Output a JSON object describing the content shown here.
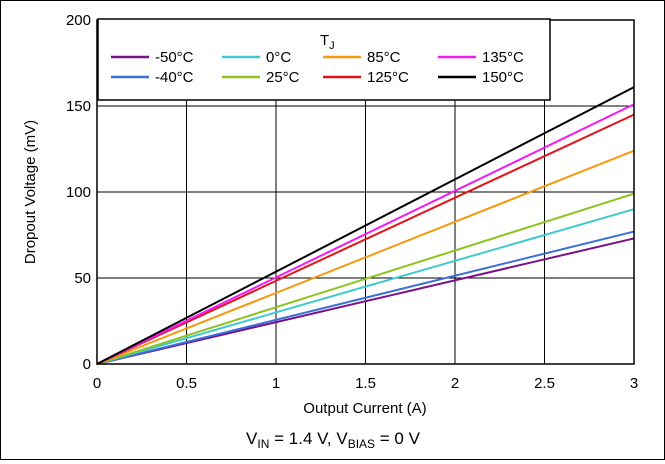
{
  "chart_data": {
    "type": "line",
    "xlabel": "Output Current (A)",
    "ylabel": "Dropout Voltage (mV)",
    "xlim": [
      0,
      3
    ],
    "ylim": [
      0,
      200
    ],
    "x_ticks": [
      "0",
      "0.5",
      "1",
      "1.5",
      "2",
      "2.5",
      "3"
    ],
    "y_ticks": [
      "0",
      "50",
      "100",
      "150",
      "200"
    ],
    "grid": true,
    "legend_title_main": "T",
    "legend_title_sub": "J",
    "legend_position": "top",
    "footnote": {
      "vin_prefix": "V",
      "vin_sub": "IN",
      "vin_value": " = 1.4 V, V",
      "vbias_sub": "BIAS",
      "vbias_value": " = 0 V"
    },
    "x": [
      0,
      3
    ],
    "series": [
      {
        "name": "-50°C",
        "color": "#7b0f8a",
        "values": [
          0,
          73
        ]
      },
      {
        "name": "-40°C",
        "color": "#3a6fd8",
        "values": [
          0,
          77
        ]
      },
      {
        "name": "0°C",
        "color": "#3ec9cc",
        "values": [
          0,
          90
        ]
      },
      {
        "name": "25°C",
        "color": "#8dc21f",
        "values": [
          0,
          99
        ]
      },
      {
        "name": "85°C",
        "color": "#f59a0f",
        "values": [
          0,
          124
        ]
      },
      {
        "name": "125°C",
        "color": "#e4131b",
        "values": [
          0,
          145
        ]
      },
      {
        "name": "135°C",
        "color": "#f21bf0",
        "values": [
          0,
          151
        ]
      },
      {
        "name": "150°C",
        "color": "#000000",
        "values": [
          0,
          161
        ]
      }
    ]
  }
}
